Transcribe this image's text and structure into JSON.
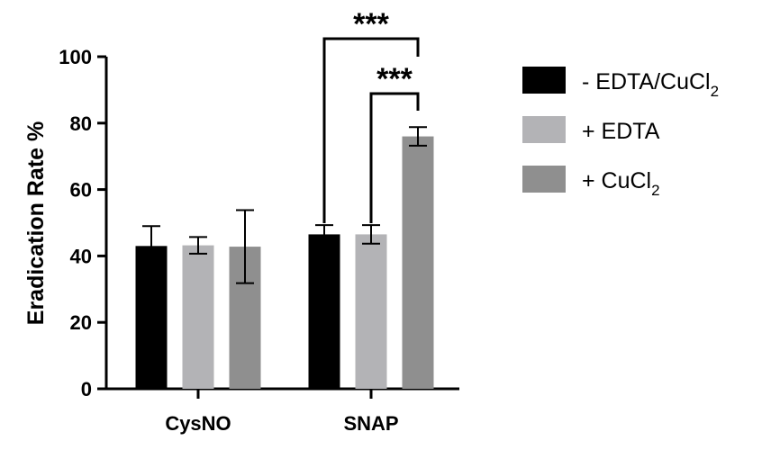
{
  "chart_data": {
    "type": "bar",
    "title": "",
    "xlabel": "",
    "ylabel": "Eradication Rate %",
    "ylim": [
      0,
      100
    ],
    "yticks": [
      "0",
      "20",
      "40",
      "60",
      "80",
      "100"
    ],
    "categories": [
      "CysNO",
      "SNAP"
    ],
    "series": [
      {
        "name": "- EDTA/CuCl",
        "subscript": "2",
        "color": "#000000",
        "values": [
          43,
          46.5
        ],
        "errors": [
          6,
          2.8
        ]
      },
      {
        "name": "+ EDTA",
        "subscript": "",
        "color": "#b3b3b6",
        "values": [
          43.2,
          46.5
        ],
        "errors": [
          2.5,
          2.8
        ]
      },
      {
        "name": "+ CuCl",
        "subscript": "2",
        "color": "#8f8f8f",
        "values": [
          42.8,
          76
        ],
        "errors": [
          11,
          2.8
        ]
      }
    ],
    "significance": [
      {
        "label": "***",
        "from_series": 0,
        "to_series": 2,
        "category": 1
      },
      {
        "label": "***",
        "from_series": 1,
        "to_series": 2,
        "category": 1
      }
    ],
    "legend_position": "right",
    "grid": false
  }
}
